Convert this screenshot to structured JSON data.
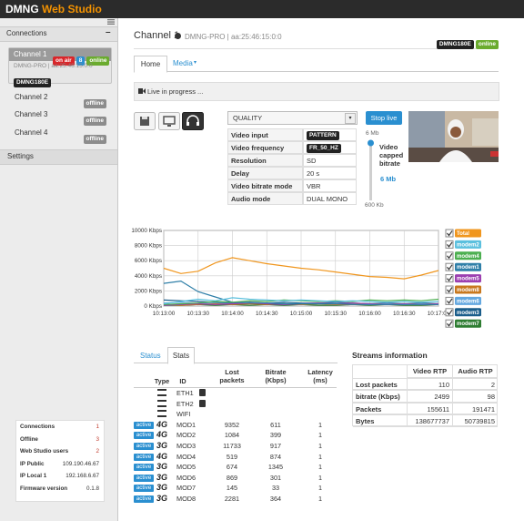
{
  "header": {
    "brand": "DMNG",
    "brand_accent": "Web Studio"
  },
  "sidebar": {
    "connections_title": "Connections",
    "channels": [
      {
        "name": "Channel 1",
        "badges": [
          {
            "text": "on air",
            "color": "#d9262a"
          },
          {
            "text": "8",
            "color": "#2a8fd0"
          },
          {
            "text": "online",
            "color": "#6aab2e"
          }
        ],
        "sub": "DMNG-PRO | aa:25:46:15:0:0",
        "device": "DMNG180E"
      },
      {
        "name": "Channel 2",
        "badges": [
          {
            "text": "offline",
            "color": "#8c8c8c"
          }
        ]
      },
      {
        "name": "Channel 3",
        "badges": [
          {
            "text": "offline",
            "color": "#8c8c8c"
          }
        ]
      },
      {
        "name": "Channel 4",
        "badges": [
          {
            "text": "offline",
            "color": "#8c8c8c"
          }
        ]
      }
    ],
    "settings_title": "Settings",
    "stats": [
      {
        "label": "Connections",
        "value": 1
      },
      {
        "label": "Offline",
        "value": 3
      },
      {
        "label": "Web Studio users",
        "value": 2
      },
      {
        "label": "IP Public",
        "value": "109.190.46.67"
      },
      {
        "label": "IP Local 1",
        "value": "192.168.6.67"
      },
      {
        "label": "Firmware version",
        "value": "0.1.8"
      }
    ]
  },
  "channel": {
    "title": "Channel 1",
    "info": "DMNG-PRO | aa:25:46:15:0:0",
    "badges": [
      {
        "text": "DMNG180E",
        "color": "#222"
      },
      {
        "text": "online",
        "color": "#6aab2e"
      }
    ]
  },
  "tabs": [
    "Home",
    "Media"
  ],
  "banner": "Live in progress ...",
  "settings_table": {
    "select": "QUALITY",
    "rows": [
      {
        "label": "Video input",
        "value": "PATTERN",
        "badge": true
      },
      {
        "label": "Video frequency",
        "value": "FR_50_HZ",
        "badge": true
      },
      {
        "label": "Resolution",
        "value": "SD"
      },
      {
        "label": "Delay",
        "value": "20 s"
      },
      {
        "label": "Video bitrate mode",
        "value": "VBR"
      },
      {
        "label": "Audio mode",
        "value": "DUAL MONO"
      }
    ]
  },
  "stop_button": "Stop live",
  "slider": {
    "max": "6 Mb",
    "label": "Video capped bitrate",
    "value": "6 Mb",
    "min": "600 Kb"
  },
  "chart_data": {
    "type": "line",
    "categories": [
      "10:13:00",
      null,
      "10:13:30",
      null,
      "10:14:00",
      null,
      "10:14:30",
      null,
      "10:15:00",
      null,
      "10:15:30",
      null,
      "10:16:00",
      null,
      "10:16:30",
      null,
      "10:17:00"
    ],
    "ylim": [
      0,
      10000
    ],
    "yticks": [
      {
        "value": 0,
        "label": "0 Kbps"
      },
      {
        "value": 2000,
        "label": "2000 Kbps"
      },
      {
        "value": 4000,
        "label": "4000 Kbps"
      },
      {
        "value": 6000,
        "label": "6000 Kbps"
      },
      {
        "value": 8000,
        "label": "8000 Kbps"
      },
      {
        "value": 10000,
        "label": "10000 Kbps"
      }
    ],
    "grid": true,
    "series": [
      {
        "name": "Total",
        "color": "#f0961e",
        "values": [
          5000,
          4300,
          4600,
          5700,
          6400,
          6000,
          5600,
          5300,
          5000,
          4800,
          4500,
          4200,
          3900,
          3800,
          3600,
          4100,
          4700
        ]
      },
      {
        "name": "modem2",
        "color": "#5bc0de",
        "values": [
          300,
          600,
          900,
          700,
          1100,
          900,
          800,
          700,
          800,
          700,
          600,
          700,
          600,
          500,
          600,
          500,
          600
        ]
      },
      {
        "name": "modem4",
        "color": "#4caf50",
        "values": [
          200,
          300,
          400,
          600,
          500,
          700,
          600,
          800,
          700,
          600,
          700,
          600,
          800,
          700,
          800,
          700,
          900
        ]
      },
      {
        "name": "modem1",
        "color": "#2f7fa8",
        "values": [
          3000,
          3300,
          1900,
          1200,
          500,
          400,
          400,
          300,
          300,
          300,
          300,
          200,
          200,
          200,
          200,
          200,
          200
        ]
      },
      {
        "name": "modem5",
        "color": "#9c3fb0",
        "values": [
          100,
          200,
          300,
          200,
          300,
          400,
          300,
          200,
          300,
          400,
          300,
          400,
          300,
          200,
          300,
          200,
          300
        ]
      },
      {
        "name": "modem8",
        "color": "#c8781e",
        "values": [
          200,
          100,
          200,
          300,
          200,
          300,
          200,
          300,
          200,
          300,
          200,
          200,
          300,
          200,
          300,
          200,
          300
        ]
      },
      {
        "name": "modem6",
        "color": "#64a8e0",
        "values": [
          400,
          500,
          300,
          400,
          300,
          300,
          400,
          300,
          200,
          300,
          200,
          300,
          200,
          300,
          200,
          300,
          200
        ]
      },
      {
        "name": "modem3",
        "color": "#1a5d8a",
        "values": [
          800,
          700,
          600,
          500,
          400,
          500,
          400,
          500,
          400,
          400,
          500,
          400,
          300,
          400,
          300,
          400,
          300
        ]
      },
      {
        "name": "modem7",
        "color": "#2e7d32",
        "values": [
          100,
          100,
          200,
          100,
          200,
          100,
          200,
          100,
          200,
          100,
          100,
          200,
          100,
          200,
          100,
          100,
          200
        ]
      }
    ]
  },
  "lower_tabs": [
    "Status",
    "Stats"
  ],
  "stats_table": {
    "headers": [
      "Type",
      "ID",
      "Lost packets",
      "Bitrate (Kbps)",
      "Latency (ms)"
    ],
    "rows": [
      {
        "id": "ETH1"
      },
      {
        "id": "ETH2"
      },
      {
        "id": "WIFI"
      },
      {
        "status": "active",
        "type": "4G",
        "id": "MOD1",
        "lost": 9352,
        "bitrate": 611,
        "latency": 1
      },
      {
        "status": "active",
        "type": "4G",
        "id": "MOD2",
        "lost": 1084,
        "bitrate": 399,
        "latency": 1
      },
      {
        "status": "active",
        "type": "3G",
        "id": "MOD3",
        "lost": 11733,
        "bitrate": 917,
        "latency": 1
      },
      {
        "status": "active",
        "type": "4G",
        "id": "MOD4",
        "lost": 519,
        "bitrate": 874,
        "latency": 1
      },
      {
        "status": "active",
        "type": "3G",
        "id": "MOD5",
        "lost": 674,
        "bitrate": 1345,
        "latency": 1
      },
      {
        "status": "active",
        "type": "3G",
        "id": "MOD6",
        "lost": 869,
        "bitrate": 301,
        "latency": 1
      },
      {
        "status": "active",
        "type": "3G",
        "id": "MOD7",
        "lost": 145,
        "bitrate": 33,
        "latency": 1
      },
      {
        "status": "active",
        "type": "3G",
        "id": "MOD8",
        "lost": 2281,
        "bitrate": 364,
        "latency": 1
      }
    ]
  },
  "streams": {
    "title": "Streams information",
    "headers": [
      "Video RTP",
      "Audio RTP"
    ],
    "rows": [
      {
        "label": "Lost packets",
        "values": [
          110,
          2
        ]
      },
      {
        "label": "bitrate (Kbps)",
        "values": [
          2499,
          98
        ]
      },
      {
        "label": "Packets",
        "values": [
          155611,
          191471
        ]
      },
      {
        "label": "Bytes",
        "values": [
          138677737,
          50739815
        ]
      }
    ]
  }
}
